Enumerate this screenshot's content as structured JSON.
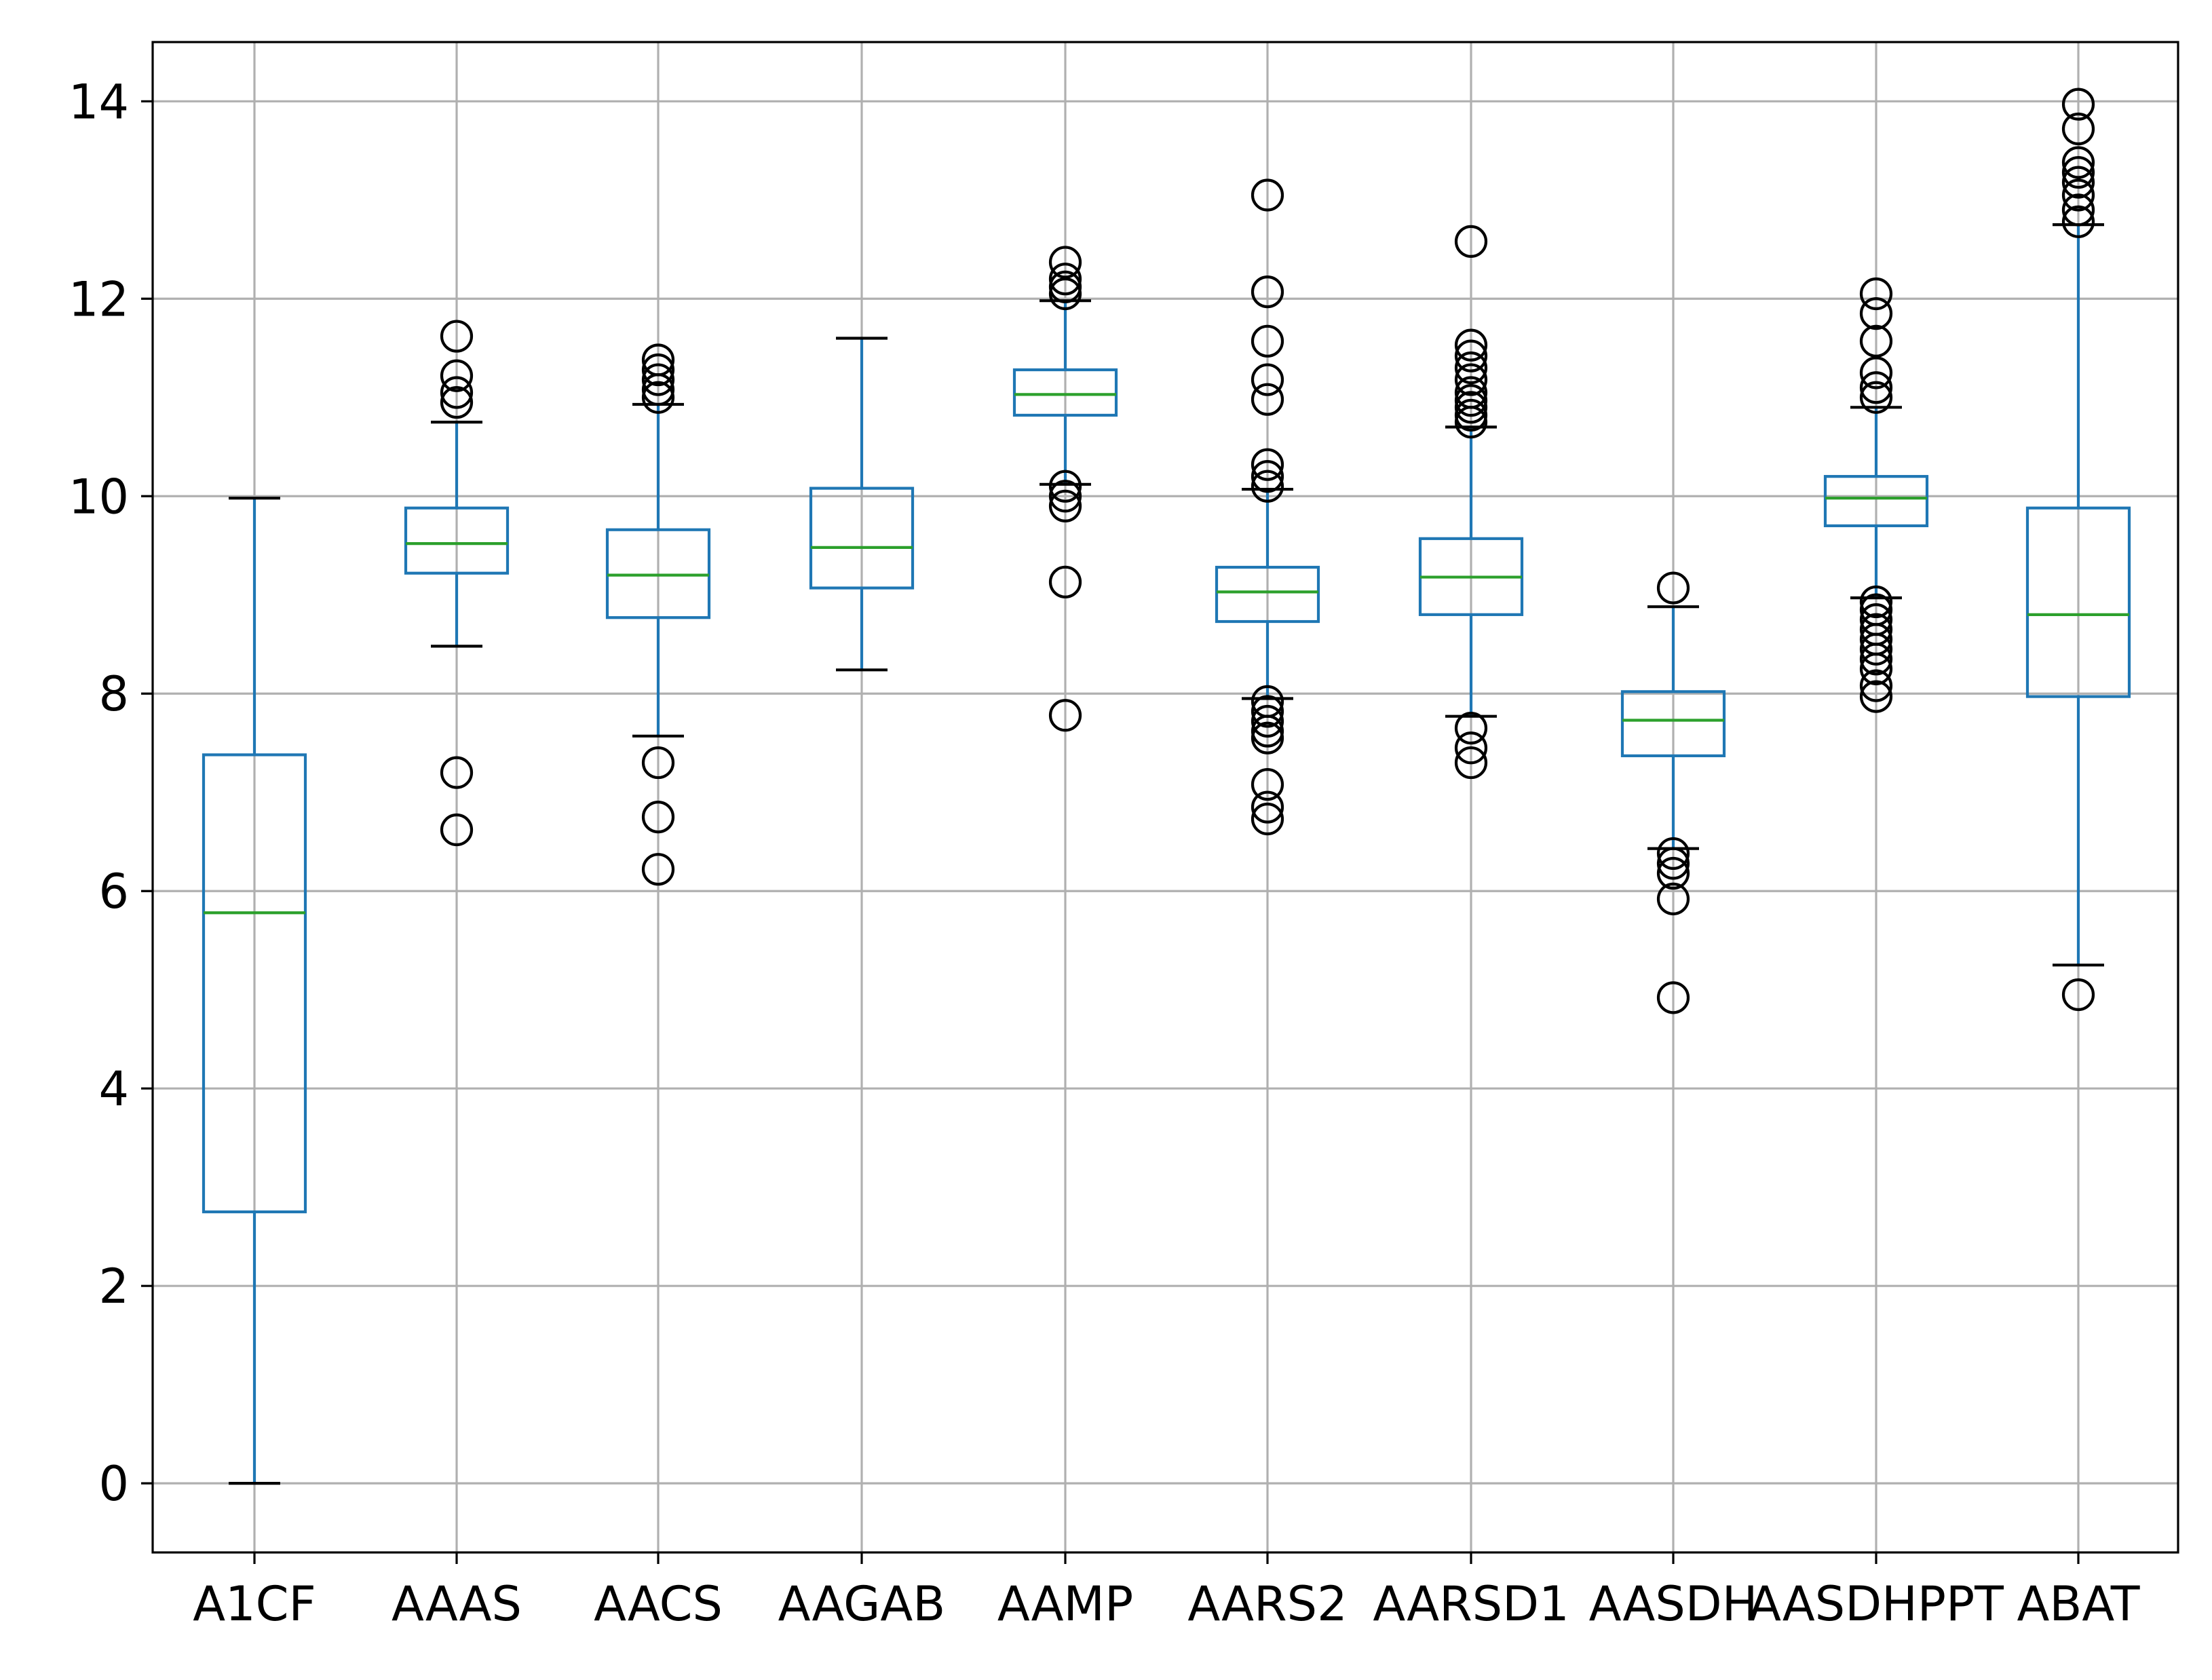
{
  "chart_data": {
    "type": "box",
    "title": "",
    "xlabel": "",
    "ylabel": "",
    "ylim": [
      -0.7,
      14.6
    ],
    "yticks": [
      0,
      2,
      4,
      6,
      8,
      10,
      12,
      14
    ],
    "grid": true,
    "legend": "none",
    "colors": {
      "box": "#1f77b4",
      "median": "#2ca02c",
      "flier": "#000000",
      "grid": "#b0b0b0"
    },
    "categories": [
      "A1CF",
      "AAAS",
      "AACS",
      "AAGAB",
      "AAMP",
      "AARS2",
      "AARSD1",
      "AASDH",
      "AASDHPPT",
      "ABAT"
    ],
    "boxes": [
      {
        "label": "A1CF",
        "whislo": 0.0,
        "q1": 2.75,
        "median": 5.78,
        "q3": 7.38,
        "whishi": 9.98,
        "fliers": []
      },
      {
        "label": "AAAS",
        "whislo": 8.48,
        "q1": 9.22,
        "median": 9.52,
        "q3": 9.88,
        "whishi": 10.75,
        "fliers": [
          11.62,
          11.22,
          11.05,
          10.95,
          7.2,
          6.62
        ]
      },
      {
        "label": "AACS",
        "whislo": 7.57,
        "q1": 8.77,
        "median": 9.2,
        "q3": 9.66,
        "whishi": 10.93,
        "fliers": [
          11.38,
          11.28,
          11.18,
          11.08,
          11.0,
          7.3,
          6.75,
          6.22
        ]
      },
      {
        "label": "AAGAB",
        "whislo": 8.24,
        "q1": 9.07,
        "median": 9.48,
        "q3": 10.08,
        "whishi": 11.6,
        "fliers": []
      },
      {
        "label": "AAMP",
        "whislo": 10.12,
        "q1": 10.82,
        "median": 11.03,
        "q3": 11.28,
        "whishi": 11.98,
        "fliers": [
          12.37,
          12.2,
          12.12,
          12.05,
          10.1,
          10.0,
          9.9,
          9.13,
          7.78
        ]
      },
      {
        "label": "AARS2",
        "whislo": 7.95,
        "q1": 8.73,
        "median": 9.03,
        "q3": 9.28,
        "whishi": 10.07,
        "fliers": [
          13.05,
          12.07,
          11.57,
          11.18,
          10.98,
          10.32,
          10.2,
          10.1,
          7.92,
          7.82,
          7.72,
          7.62,
          7.55,
          7.08,
          6.85,
          6.73
        ]
      },
      {
        "label": "AARSD1",
        "whislo": 7.77,
        "q1": 8.8,
        "median": 9.18,
        "q3": 9.57,
        "whishi": 10.7,
        "fliers": [
          12.58,
          11.53,
          11.42,
          11.3,
          11.18,
          11.05,
          10.97,
          10.9,
          10.82,
          10.75,
          7.65,
          7.45,
          7.3
        ]
      },
      {
        "label": "AASDH",
        "whislo": 6.43,
        "q1": 7.37,
        "median": 7.73,
        "q3": 8.02,
        "whishi": 8.88,
        "fliers": [
          9.07,
          6.38,
          6.28,
          6.18,
          5.92,
          4.92
        ]
      },
      {
        "label": "AASDHPPT",
        "whislo": 8.97,
        "q1": 9.7,
        "median": 9.98,
        "q3": 10.2,
        "whishi": 10.9,
        "fliers": [
          12.05,
          11.85,
          11.57,
          11.25,
          11.1,
          11.0,
          8.93,
          8.85,
          8.75,
          8.65,
          8.55,
          8.45,
          8.35,
          8.25,
          8.08,
          7.97
        ]
      },
      {
        "label": "ABAT",
        "whislo": 5.25,
        "q1": 7.97,
        "median": 8.8,
        "q3": 9.88,
        "whishi": 12.75,
        "fliers": [
          13.97,
          13.72,
          13.38,
          13.28,
          13.18,
          13.05,
          12.9,
          12.78,
          4.95
        ]
      }
    ]
  }
}
